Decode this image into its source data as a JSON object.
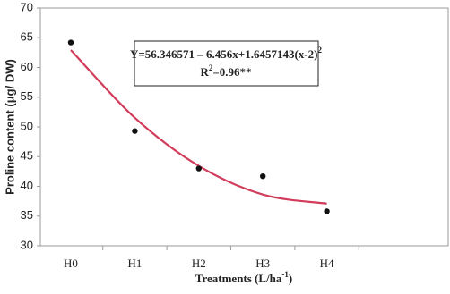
{
  "chart_data": {
    "type": "scatter_fit",
    "y_label": "Proline content (μg/ DW)",
    "x_label": {
      "main": "Treatments (L/ha",
      "sup": "-1",
      "end": ")"
    },
    "categories": [
      "H0",
      "H1",
      "H2",
      "H3",
      "H4"
    ],
    "series": [
      {
        "style": "points",
        "color": "#111111",
        "values": [
          64.2,
          49.3,
          43.0,
          41.7,
          35.8
        ]
      },
      {
        "style": "curve",
        "color": "#d23c5a",
        "values": [
          62.93,
          51.53,
          43.43,
          38.62,
          37.1
        ]
      }
    ],
    "annotation": {
      "equation": "Y=56.346571 – 6.456x+1.6457143(x-2)",
      "equation_sup": "2",
      "r2": "R",
      "r2_sup": "2",
      "r2_rest": "=0.96**"
    },
    "ylim": [
      30,
      70
    ],
    "yticks": [
      30,
      35,
      40,
      45,
      50,
      55,
      60,
      65,
      70
    ],
    "grid": false
  }
}
